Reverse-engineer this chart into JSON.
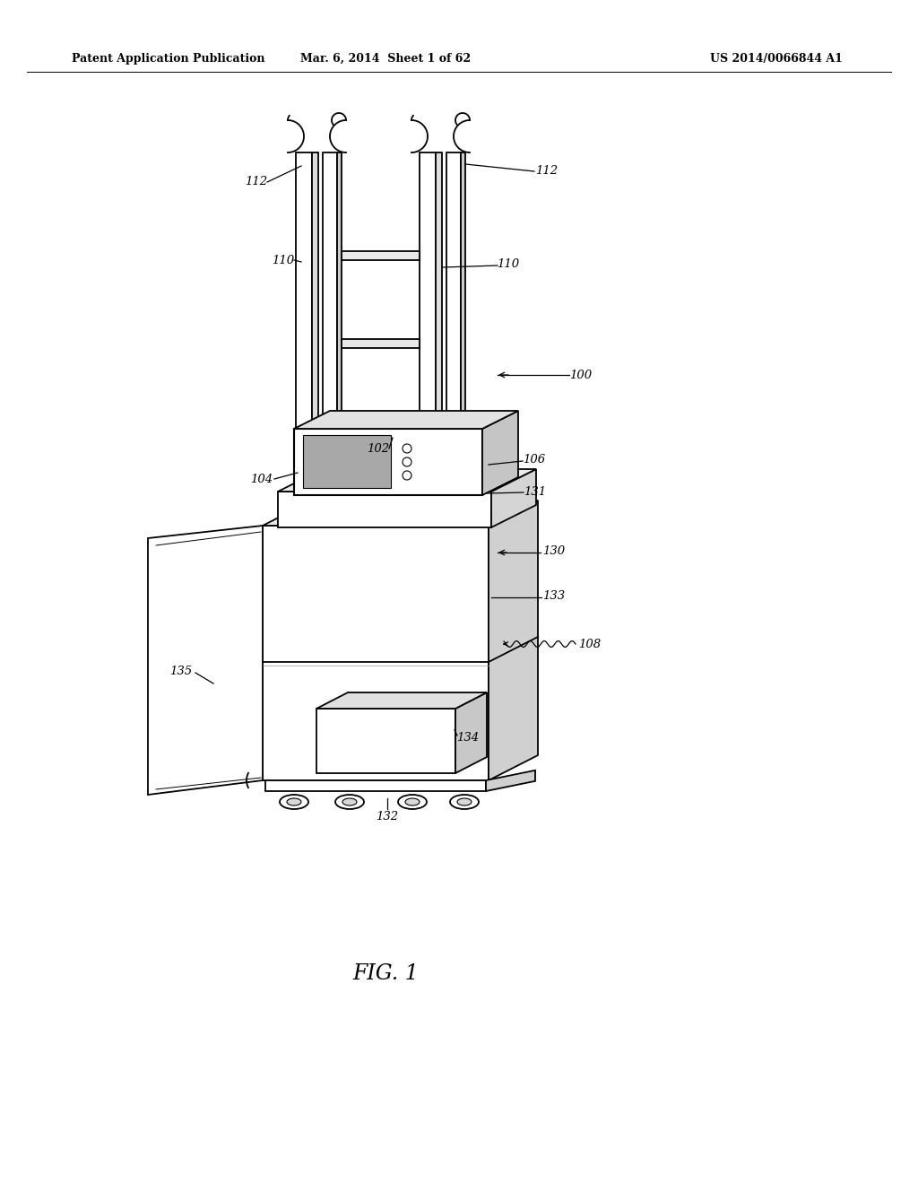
{
  "bg_color": "#ffffff",
  "header_left": "Patent Application Publication",
  "header_mid": "Mar. 6, 2014  Sheet 1 of 62",
  "header_right": "US 2014/0066844 A1",
  "figure_label": "FIG. 1",
  "line_color": "#000000",
  "lw_main": 1.3,
  "lw_thin": 0.8,
  "font_size_header": 9,
  "font_size_label": 9.5,
  "font_size_fig": 17
}
